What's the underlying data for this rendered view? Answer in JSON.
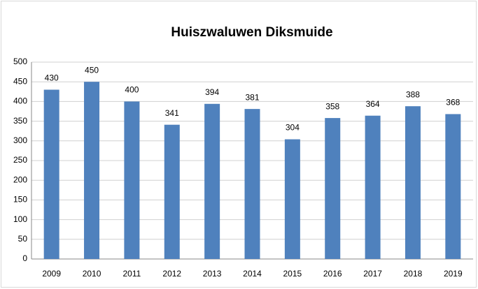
{
  "chart_data": {
    "type": "bar",
    "title": "Huiszwaluwen Diksmuide",
    "categories": [
      "2009",
      "2010",
      "2011",
      "2012",
      "2013",
      "2014",
      "2015",
      "2016",
      "2017",
      "2018",
      "2019"
    ],
    "values": [
      430,
      450,
      400,
      341,
      394,
      381,
      304,
      358,
      364,
      388,
      368
    ],
    "color": "#4f81bd",
    "ylim": [
      0,
      500
    ],
    "yticks": [
      0,
      50,
      100,
      150,
      200,
      250,
      300,
      350,
      400,
      450,
      500
    ],
    "grid": true
  }
}
